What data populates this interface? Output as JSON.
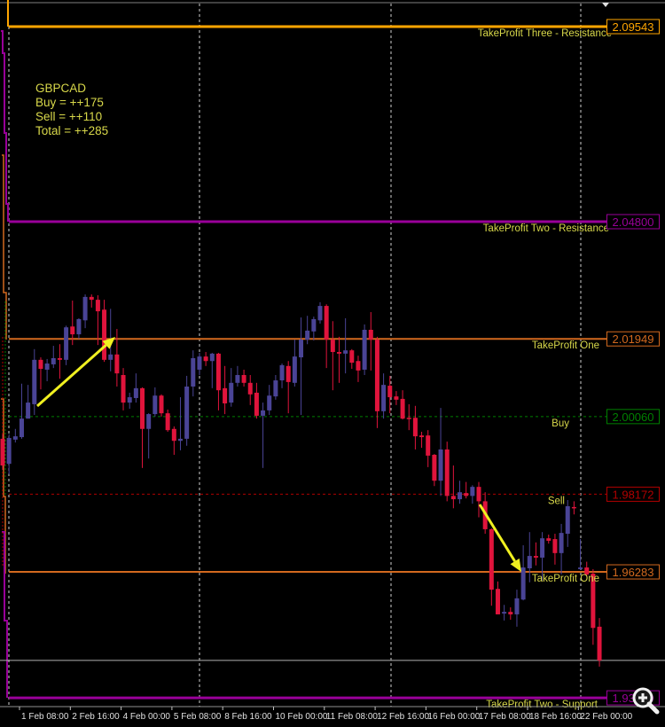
{
  "chart_data": {
    "type": "candlestick",
    "symbol": "GBPCAD",
    "info_lines": [
      "GBPCAD",
      "Buy = ++175",
      "Sell = ++110",
      "Total = ++285"
    ],
    "colors": {
      "bull": "#4a4496",
      "bear": "#e0143c",
      "background": "#000000",
      "label_text": "#d8d84a",
      "arrow": "#f0f020",
      "bid_line": "#b0b0b0"
    },
    "price_range": [
      1.9301,
      2.1019
    ],
    "grid": false,
    "levels": [
      {
        "id": "tp3-resistance",
        "label": "TakeProfit Three - Resistance",
        "price": 2.09543,
        "price_text": "2.09543",
        "color": "#ffa500",
        "style": "solid-thick"
      },
      {
        "id": "tp2-resistance",
        "label": "TakeProfit Two - Resistance",
        "price": 2.048,
        "price_text": "2.04800",
        "color": "#990099",
        "style": "solid-thick"
      },
      {
        "id": "tp1-resistance",
        "label": "TakeProfit One",
        "price": 2.01949,
        "price_text": "2.01949",
        "color": "#d2691e",
        "style": "solid"
      },
      {
        "id": "buy",
        "label": "Buy",
        "price": 2.0006,
        "price_text": "2.00060",
        "color": "#008000",
        "style": "dashed"
      },
      {
        "id": "sell",
        "label": "Sell",
        "price": 1.98172,
        "price_text": "1.98172",
        "color": "#b00000",
        "style": "dashed"
      },
      {
        "id": "tp1-support",
        "label": "TakeProfit One",
        "price": 1.96283,
        "price_text": "1.96283",
        "color": "#d2691e",
        "style": "solid"
      },
      {
        "id": "tp2-support",
        "label": "TakeProfit Two - Support",
        "price": 1.9322,
        "price_text": "1.93220",
        "color": "#990099",
        "style": "solid-thick"
      }
    ],
    "bid_price": 1.9413,
    "x_tick_labels": [
      "0:00",
      "1 Feb 08:00",
      "2 Feb 16:00",
      "4 Feb 00:00",
      "5 Feb 08:00",
      "8 Feb 16:00",
      "10 Feb 00:00",
      "11 Feb 08:00",
      "12 Feb 16:00",
      "16 Feb 00:00",
      "17 Feb 08:00",
      "18 Feb 16:00",
      "22 Feb 00:00"
    ],
    "ohlc_fields": [
      "open",
      "high",
      "low",
      "close"
    ],
    "candles": [
      [
        1.9952,
        1.9963,
        1.9876,
        1.9887
      ],
      [
        1.9891,
        1.9963,
        1.9866,
        1.9954
      ],
      [
        1.995,
        1.9976,
        1.9943,
        1.9958
      ],
      [
        1.9956,
        2.0086,
        1.9952,
        2.0001
      ],
      [
        2.0001,
        2.0083,
        2.0001,
        2.004
      ],
      [
        2.0036,
        2.017,
        2.001,
        2.0144
      ],
      [
        2.0144,
        2.015,
        2.0072,
        2.0122
      ],
      [
        2.012,
        2.0146,
        2.0092,
        2.0135
      ],
      [
        2.0133,
        2.0178,
        2.0124,
        2.0148
      ],
      [
        2.0148,
        2.0182,
        2.0098,
        2.0144
      ],
      [
        2.0144,
        2.0227,
        2.0131,
        2.0223
      ],
      [
        2.0225,
        2.0288,
        2.018,
        2.0206
      ],
      [
        2.0206,
        2.0245,
        2.0195,
        2.0243
      ],
      [
        2.024,
        2.0303,
        2.0221,
        2.0297
      ],
      [
        2.0297,
        2.0303,
        2.0271,
        2.029
      ],
      [
        2.029,
        2.0301,
        2.018,
        2.0262
      ],
      [
        2.0266,
        2.029,
        2.0139,
        2.0144
      ],
      [
        2.0144,
        2.0268,
        2.0116,
        2.0157
      ],
      [
        2.0157,
        2.0219,
        2.0079,
        2.0111
      ],
      [
        2.0107,
        2.0124,
        2.0021,
        2.004
      ],
      [
        2.004,
        2.0064,
        2.0025,
        2.0053
      ],
      [
        2.0051,
        2.0111,
        2.004,
        2.0075
      ],
      [
        2.0075,
        2.0077,
        1.9881,
        1.9976
      ],
      [
        1.9976,
        2.0014,
        1.9904,
        2.0012
      ],
      [
        2.0012,
        2.0077,
        2.0006,
        2.0057
      ],
      [
        2.0057,
        2.006,
        2.0006,
        2.0014
      ],
      [
        2.0014,
        2.0023,
        1.9969,
        1.9973
      ],
      [
        1.9976,
        1.9982,
        1.9913,
        1.9947
      ],
      [
        1.9947,
        2.0053,
        1.9924,
        1.9952
      ],
      [
        1.9952,
        2.0105,
        1.9935,
        2.0079
      ],
      [
        2.0079,
        2.0167,
        2.0055,
        2.0148
      ],
      [
        2.012,
        2.0161,
        2.0107,
        2.0152
      ],
      [
        2.0152,
        2.0163,
        2.0129,
        2.0141
      ],
      [
        2.0141,
        2.0161,
        2.0075,
        2.0159
      ],
      [
        2.0159,
        2.0161,
        2.0021,
        2.007
      ],
      [
        2.0075,
        2.0129,
        2.0012,
        2.0038
      ],
      [
        2.004,
        2.0124,
        2.003,
        2.0088
      ],
      [
        2.0088,
        2.0129,
        2.0079,
        2.0107
      ],
      [
        2.0107,
        2.012,
        2.0079,
        2.0088
      ],
      [
        2.0088,
        2.0107,
        2.0034,
        2.006
      ],
      [
        2.0064,
        2.0088,
        2.0001,
        2.0008
      ],
      [
        2.0008,
        2.004,
        1.9881,
        2.0021
      ],
      [
        2.0021,
        2.0083,
        2.001,
        2.0057
      ],
      [
        2.0055,
        2.0107,
        2.0047,
        2.0094
      ],
      [
        2.0094,
        2.0135,
        2.0075,
        2.0131
      ],
      [
        2.0129,
        2.0141,
        2.0014,
        2.009
      ],
      [
        2.0088,
        2.0193,
        2.0079,
        2.0152
      ],
      [
        2.015,
        2.0247,
        2.001,
        2.0193
      ],
      [
        2.0193,
        2.0251,
        2.0182,
        2.0215
      ],
      [
        2.0213,
        2.0249,
        2.0191,
        2.0243
      ],
      [
        2.024,
        2.0284,
        2.0232,
        2.0275
      ],
      [
        2.0275,
        2.0279,
        2.0124,
        2.0193
      ],
      [
        2.0193,
        2.0238,
        2.007,
        2.0163
      ],
      [
        2.0163,
        2.02,
        2.0088,
        2.0159
      ],
      [
        2.0159,
        2.0245,
        2.0111,
        2.0167
      ],
      [
        2.0167,
        2.017,
        2.0122,
        2.0137
      ],
      [
        2.0141,
        2.0154,
        2.009,
        2.0118
      ],
      [
        2.012,
        2.023,
        2.0107,
        2.0217
      ],
      [
        2.0217,
        2.026,
        2.0118,
        2.0193
      ],
      [
        2.0193,
        2.02,
        1.9978,
        2.0019
      ],
      [
        2.0019,
        2.0111,
        2.0001,
        2.0083
      ],
      [
        2.0081,
        2.0105,
        2.0014,
        2.0053
      ],
      [
        2.0055,
        2.0068,
        2.0034,
        2.0047
      ],
      [
        2.0049,
        2.007,
        1.9999,
        2.0001
      ],
      [
        2.0003,
        2.0036,
        1.9973,
        2.0001
      ],
      [
        2.0003,
        2.0032,
        1.9926,
        1.9958
      ],
      [
        1.996,
        1.9969,
        1.993,
        1.9956
      ],
      [
        1.996,
        1.9973,
        1.9883,
        1.9911
      ],
      [
        1.9913,
        1.9915,
        1.9837,
        1.985
      ],
      [
        1.985,
        2.0027,
        1.9813,
        1.9926
      ],
      [
        1.9926,
        1.9945,
        1.98,
        1.9813
      ],
      [
        1.9813,
        1.9887,
        1.9783,
        1.9805
      ],
      [
        1.9805,
        1.985,
        1.9794,
        1.9822
      ],
      [
        1.982,
        1.9847,
        1.9807,
        1.9813
      ],
      [
        1.9813,
        1.9839,
        1.9794,
        1.9835
      ],
      [
        1.9835,
        1.9847,
        1.9761,
        1.98
      ],
      [
        1.98,
        1.9822,
        1.9721,
        1.9732
      ],
      [
        1.9732,
        1.9734,
        1.9546,
        1.9585
      ],
      [
        1.9587,
        1.9605,
        1.9525,
        1.9525
      ],
      [
        1.9527,
        1.9548,
        1.951,
        1.9531
      ],
      [
        1.9531,
        1.9542,
        1.9512,
        1.9525
      ],
      [
        1.9525,
        1.9585,
        1.9495,
        1.9564
      ],
      [
        1.9561,
        1.9693,
        1.9559,
        1.9639
      ],
      [
        1.9637,
        1.9725,
        1.9603,
        1.9667
      ],
      [
        1.9667,
        1.97,
        1.9644,
        1.9663
      ],
      [
        1.9663,
        1.9725,
        1.9607,
        1.971
      ],
      [
        1.971,
        1.9719,
        1.9697,
        1.9704
      ],
      [
        1.9708,
        1.9721,
        1.9646,
        1.9674
      ],
      [
        1.9674,
        1.9745,
        1.9622,
        1.9723
      ],
      [
        1.9721,
        1.9803,
        1.9689,
        1.9788
      ],
      [
        1.9786,
        1.98,
        1.9768,
        1.9783
      ],
      [
        1.9635,
        1.9708,
        1.9633,
        1.9639
      ],
      [
        1.9639,
        1.9653,
        1.9617,
        1.9622
      ],
      [
        1.9624,
        1.9635,
        1.9451,
        1.9492
      ],
      [
        1.9495,
        1.9516,
        1.9398,
        1.9413
      ]
    ]
  },
  "toolbar": {
    "zoom_icon": "magnifier-plus-icon"
  }
}
